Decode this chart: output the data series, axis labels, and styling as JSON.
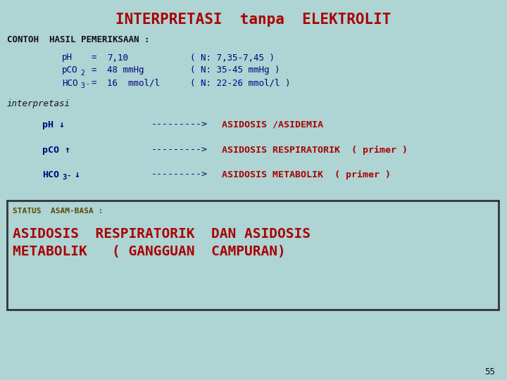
{
  "title": "INTERPRETASI  tanpa  ELEKTROLIT",
  "title_color": "#aa0000",
  "bg_color": "#aed4d4",
  "contoh_label": "CONTOH  HASIL PEMERIKSAAN :",
  "interpretasi_label": "interpretasi",
  "arrows": "--------->",
  "status_label": "STATUS  ASAM-BASA :",
  "status_line1": "ASIDOSIS  RESPIRATORIK  DAN ASIDOSIS",
  "status_line2": "METABOLIK   ( GANGGUAN  CAMPURAN)",
  "page_number": "55",
  "dark_blue": "#000080",
  "red_color": "#aa0000",
  "black_color": "#111111",
  "olive_color": "#5a4a00",
  "title_fontsize": 15,
  "contoh_fontsize": 9,
  "meas_fontsize": 9,
  "interp_label_fontsize": 9,
  "arrow_row_fontsize": 9.5,
  "status_label_fontsize": 8,
  "status_big_fontsize": 14,
  "page_fontsize": 9
}
